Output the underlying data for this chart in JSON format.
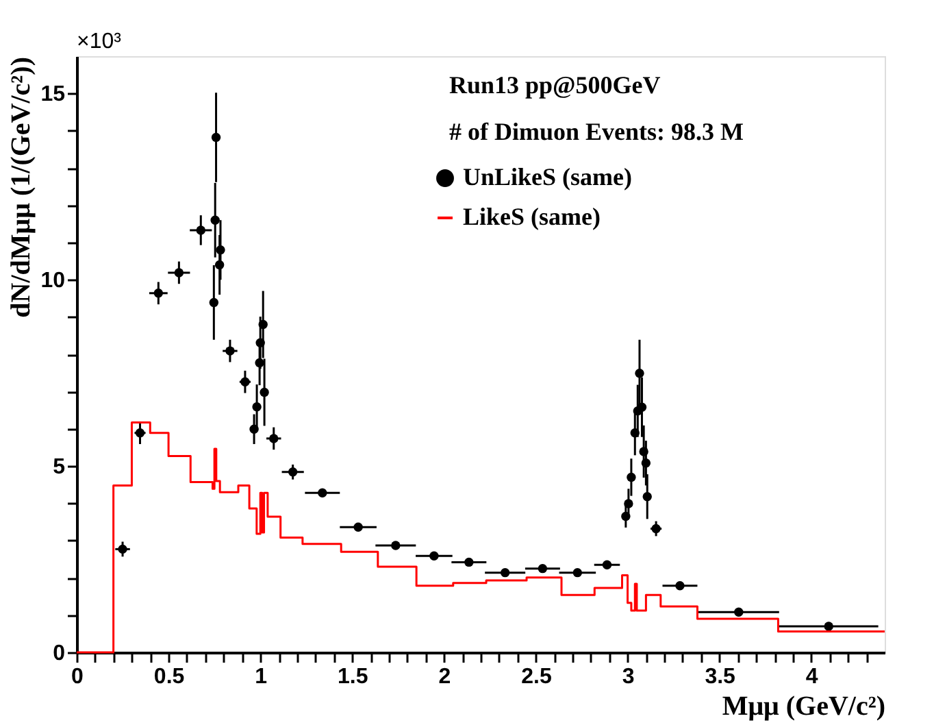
{
  "chart_data": {
    "type": "scatter",
    "xlabel": "Mμμ (GeV/c²)",
    "ylabel": "dN/dMμμ (1/(GeV/c²))",
    "annotations": [
      "×10³",
      "Run13 pp@500GeV",
      "# of Dimuon Events: 98.3 M"
    ],
    "xlim": [
      0,
      4.4
    ],
    "ylim": [
      0,
      16
    ],
    "xticks": [
      0,
      {
        "value": 0.1,
        "label": null
      },
      {
        "value": 0.2,
        "label": null
      },
      {
        "value": 0.3,
        "label": null
      },
      {
        "value": 0.4,
        "label": null
      },
      0.5,
      {
        "value": 0.6,
        "label": null
      },
      {
        "value": 0.7,
        "label": null
      },
      {
        "value": 0.8,
        "label": null
      },
      {
        "value": 0.9,
        "label": null
      },
      1,
      {
        "value": 1.1,
        "label": null
      },
      {
        "value": 1.2,
        "label": null
      },
      {
        "value": 1.3,
        "label": null
      },
      {
        "value": 1.4,
        "label": null
      },
      1.5,
      {
        "value": 1.6,
        "label": null
      },
      {
        "value": 1.7,
        "label": null
      },
      {
        "value": 1.8,
        "label": null
      },
      {
        "value": 1.9,
        "label": null
      },
      2,
      {
        "value": 2.1,
        "label": null
      },
      {
        "value": 2.2,
        "label": null
      },
      {
        "value": 2.3,
        "label": null
      },
      {
        "value": 2.4,
        "label": null
      },
      2.5,
      {
        "value": 2.6,
        "label": null
      },
      {
        "value": 2.7,
        "label": null
      },
      {
        "value": 2.8,
        "label": null
      },
      {
        "value": 2.9,
        "label": null
      },
      3,
      {
        "value": 3.1,
        "label": null
      },
      {
        "value": 3.2,
        "label": null
      },
      {
        "value": 3.3,
        "label": null
      },
      {
        "value": 3.4,
        "label": null
      },
      3.5,
      {
        "value": 3.6,
        "label": null
      },
      {
        "value": 3.7,
        "label": null
      },
      {
        "value": 3.8,
        "label": null
      },
      {
        "value": 3.9,
        "label": null
      },
      4,
      {
        "value": 4.1,
        "label": null
      },
      {
        "value": 4.2,
        "label": null
      },
      {
        "value": 4.3,
        "label": null
      }
    ],
    "yticks": [
      0,
      {
        "value": 1,
        "label": null
      },
      {
        "value": 2,
        "label": null
      },
      {
        "value": 3,
        "label": null
      },
      {
        "value": 4,
        "label": null
      },
      5,
      {
        "value": 6,
        "label": null
      },
      {
        "value": 7,
        "label": null
      },
      {
        "value": 8,
        "label": null
      },
      {
        "value": 9,
        "label": null
      },
      10,
      {
        "value": 11,
        "label": null
      },
      {
        "value": 12,
        "label": null
      },
      {
        "value": 13,
        "label": null
      },
      {
        "value": 14,
        "label": null
      },
      15
    ],
    "legend": "top right",
    "grid": false,
    "series": [
      {
        "name": "UnLikeS (same)",
        "marker": "circle",
        "color": "#000000",
        "x": [
          0.25,
          0.345,
          0.445,
          0.557,
          0.676,
          0.747,
          0.754,
          0.759,
          0.778,
          0.783,
          0.835,
          0.917,
          0.966,
          0.981,
          0.996,
          1.0,
          1.015,
          1.022,
          1.073,
          1.177,
          1.338,
          1.533,
          1.737,
          1.946,
          2.136,
          2.333,
          2.537,
          2.727,
          2.888,
          2.99,
          3.005,
          3.02,
          3.04,
          3.055,
          3.065,
          3.078,
          3.088,
          3.1,
          3.107,
          3.155,
          3.285,
          3.605,
          4.095
        ],
        "values": [
          2.77,
          5.89,
          9.64,
          10.19,
          11.33,
          9.39,
          11.6,
          13.82,
          10.4,
          10.8,
          8.09,
          7.26,
          5.99,
          6.59,
          7.77,
          8.31,
          8.8,
          6.98,
          5.74,
          4.84,
          4.28,
          3.36,
          2.87,
          2.59,
          2.42,
          2.14,
          2.25,
          2.14,
          2.35,
          3.65,
          3.99,
          4.7,
          5.89,
          6.48,
          7.49,
          6.58,
          5.39,
          5.08,
          4.18,
          3.32,
          1.79,
          1.08,
          0.7
        ],
        "errors": [
          0.2,
          0.3,
          0.3,
          0.3,
          0.4,
          1.0,
          1.0,
          1.2,
          0.8,
          0.8,
          0.3,
          0.3,
          0.4,
          0.6,
          0.6,
          0.7,
          0.9,
          0.9,
          0.3,
          0.2,
          null,
          null,
          null,
          null,
          null,
          null,
          null,
          null,
          null,
          0.3,
          0.4,
          0.5,
          0.6,
          0.7,
          0.9,
          0.8,
          0.7,
          0.6,
          0.6,
          0.2,
          null,
          null,
          null
        ],
        "xerrors": [
          0.04,
          0.03,
          0.05,
          0.06,
          0.06,
          null,
          null,
          null,
          null,
          null,
          0.04,
          0.03,
          null,
          null,
          null,
          null,
          null,
          null,
          0.04,
          0.06,
          0.095,
          0.1,
          0.11,
          0.1,
          0.095,
          0.11,
          0.095,
          0.1,
          0.07,
          null,
          null,
          null,
          null,
          null,
          null,
          null,
          null,
          null,
          null,
          0.03,
          0.095,
          0.22,
          0.27
        ]
      },
      {
        "name": "LikeS (same)",
        "type": "step",
        "color": "#ff0000",
        "x": [
          0,
          0.2,
          0.3,
          0.4,
          0.5,
          0.62,
          0.74,
          0.75,
          0.76,
          0.78,
          0.88,
          0.94,
          0.98,
          1.0,
          1.01,
          1.02,
          1.04,
          1.11,
          1.23,
          1.44,
          1.64,
          1.85,
          2.05,
          2.23,
          2.45,
          2.64,
          2.82,
          2.97,
          3.0,
          3.02,
          3.04,
          3.05,
          3.1,
          3.18,
          3.38,
          3.82,
          4.4
        ],
        "values": [
          0,
          4.48,
          6.17,
          5.89,
          5.27,
          4.57,
          4.39,
          5.46,
          4.6,
          4.3,
          4.48,
          3.86,
          3.18,
          4.28,
          3.22,
          4.28,
          3.64,
          3.08,
          2.91,
          2.7,
          2.3,
          1.79,
          1.86,
          1.93,
          2.01,
          1.54,
          1.73,
          2.07,
          1.33,
          1.12,
          1.84,
          1.12,
          1.54,
          1.23,
          0.9,
          0.56,
          0.56
        ]
      }
    ]
  }
}
